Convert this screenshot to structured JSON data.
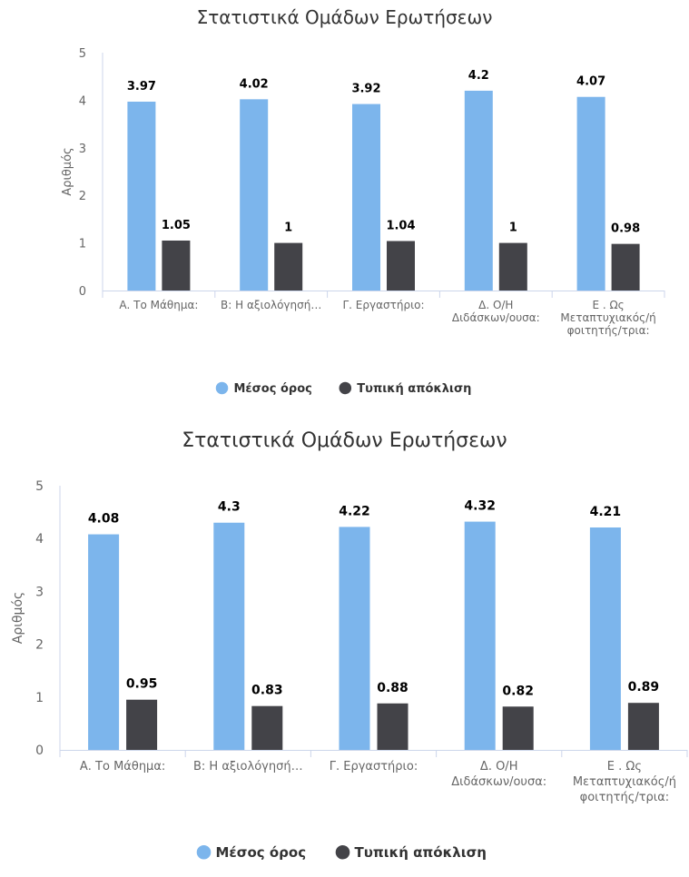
{
  "chart_data": [
    {
      "type": "bar",
      "title": "Στατιστικά Ομάδων Ερωτήσεων",
      "ylabel": "Αριθμός",
      "ylim": [
        0,
        5
      ],
      "yticks": [
        0,
        1,
        2,
        3,
        4,
        5
      ],
      "categories": [
        [
          "Α. Το Μάθημα:"
        ],
        [
          "Β: Η αξιολόγησή…"
        ],
        [
          "Γ. Εργαστήριο:"
        ],
        [
          "Δ. Ο/Η",
          "Διδάσκων/ουσα:"
        ],
        [
          "Ε . Ως",
          "Μεταπτυχιακός/ή",
          "φοιτητής/τρια:"
        ]
      ],
      "series": [
        {
          "name": "Μέσος όρος",
          "color": "#7cb5ec",
          "values": [
            3.97,
            4.02,
            3.92,
            4.2,
            4.07
          ],
          "labels": [
            "3.97",
            "4.02",
            "3.92",
            "4.2",
            "4.07"
          ]
        },
        {
          "name": "Τυπική απόκλιση",
          "color": "#434348",
          "values": [
            1.05,
            1,
            1.04,
            1,
            0.98
          ],
          "labels": [
            "1.05",
            "1",
            "1.04",
            "1",
            "0.98"
          ]
        }
      ],
      "grid": false,
      "legend": "bottom-center"
    },
    {
      "type": "bar",
      "title": "Στατιστικά Ομάδων Ερωτήσεων",
      "ylabel": "Αριθμός",
      "ylim": [
        0,
        5
      ],
      "yticks": [
        0,
        1,
        2,
        3,
        4,
        5
      ],
      "categories": [
        [
          "Α. Το Μάθημα:"
        ],
        [
          "Β: Η αξιολόγησή…"
        ],
        [
          "Γ. Εργαστήριο:"
        ],
        [
          "Δ. Ο/Η",
          "Διδάσκων/ουσα:"
        ],
        [
          "Ε . Ως",
          "Μεταπτυχιακός/ή",
          "φοιτητής/τρια:"
        ]
      ],
      "series": [
        {
          "name": "Μέσος όρος",
          "color": "#7cb5ec",
          "values": [
            4.08,
            4.3,
            4.22,
            4.32,
            4.21
          ],
          "labels": [
            "4.08",
            "4.3",
            "4.22",
            "4.32",
            "4.21"
          ]
        },
        {
          "name": "Τυπική απόκλιση",
          "color": "#434348",
          "values": [
            0.95,
            0.83,
            0.88,
            0.82,
            0.89
          ],
          "labels": [
            "0.95",
            "0.83",
            "0.88",
            "0.82",
            "0.89"
          ]
        }
      ],
      "grid": false,
      "legend": "bottom-center"
    }
  ]
}
